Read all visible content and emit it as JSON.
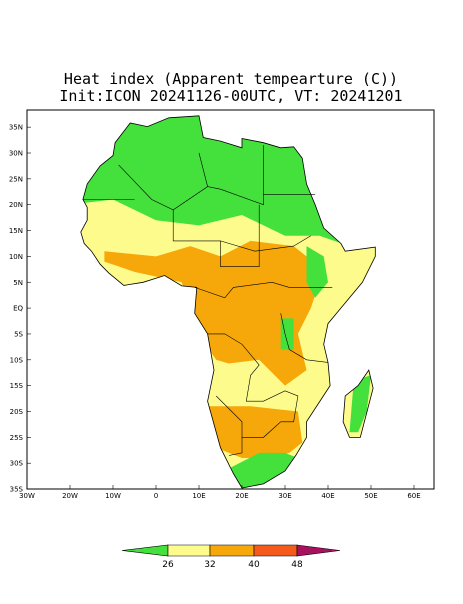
{
  "header": {
    "title": "Heat index (Apparent tempearture (C))",
    "subtitle": "Init:ICON 20241126-00UTC, VT: 20241201"
  },
  "map": {
    "lat_labels": [
      "35N",
      "30N",
      "25N",
      "20N",
      "15N",
      "10N",
      "5N",
      "EQ",
      "5S",
      "10S",
      "15S",
      "20S",
      "25S",
      "30S",
      "35S"
    ],
    "lon_labels": [
      "30W",
      "20W",
      "10W",
      "0",
      "10E",
      "20E",
      "30E",
      "40E",
      "50E",
      "60E"
    ]
  },
  "colorbar": {
    "levels": [
      26,
      32,
      40,
      48
    ],
    "colors": [
      "#44e13c",
      "#fdfb8c",
      "#f6a709",
      "#f65a1a",
      "#a8115e"
    ]
  }
}
